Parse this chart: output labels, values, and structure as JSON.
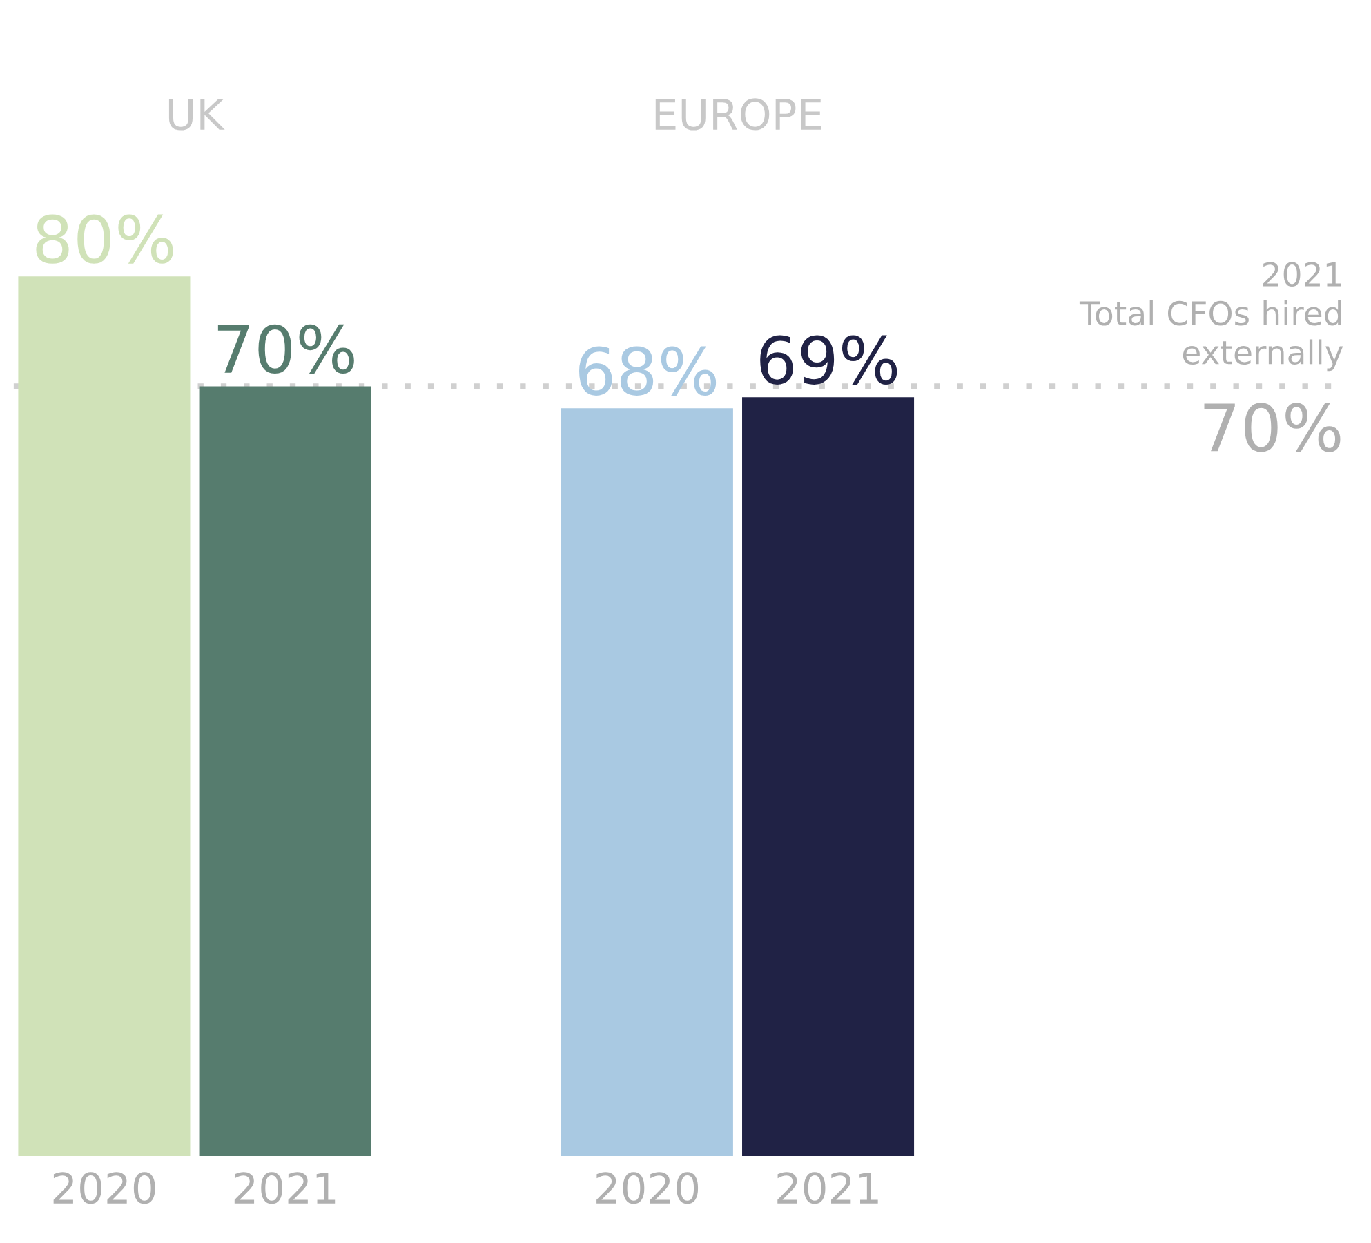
{
  "chart_data": {
    "type": "bar",
    "categories": [
      "2020",
      "2021",
      null,
      "2020",
      "2021"
    ],
    "values": [
      80,
      70,
      null,
      68,
      69
    ],
    "colors": [
      "#d0e2b8",
      "#567c6e",
      "#ffffff",
      "#a9c9e2",
      "#202245"
    ],
    "value_labels": [
      "80%",
      "70%",
      null,
      "68%",
      "69%"
    ],
    "annotations": [
      "UK",
      "EUROPE",
      "2021\nTotal CFOs hired\nexternally"
    ],
    "ref_lines": [
      {
        "axis": "y",
        "value": 70,
        "label": "70%",
        "color": "#d0d0d0",
        "line_style": "dotted"
      }
    ],
    "grid": false
  }
}
